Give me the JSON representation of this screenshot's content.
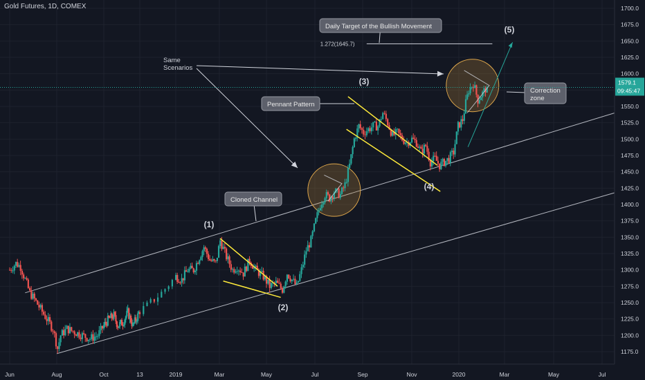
{
  "header": {
    "symbol_title": "Gold Futures, 1D, COMEX"
  },
  "colors": {
    "background": "#131722",
    "grid": "#1e222d",
    "text": "#d1d4dc",
    "up_candle": "#26a69a",
    "down_candle": "#ef5350",
    "channel": "#d1d4dc",
    "pattern_lines": "#ffeb3b",
    "circle_fill": "#b7863a",
    "circle_stroke": "#e0a84c",
    "projection": "#26a69a",
    "price_label": "#26a69a",
    "callout_bg": "#5d606b"
  },
  "chart_data": {
    "type": "candlestick",
    "title": "Gold Futures, 1D, COMEX",
    "y_axis": {
      "range": [
        1160,
        1712
      ],
      "ticks": [
        1175,
        1200,
        1225,
        1250,
        1275,
        1300,
        1325,
        1350,
        1375,
        1400,
        1425,
        1450,
        1475,
        1500,
        1525,
        1550,
        1575,
        1600,
        1625,
        1650,
        1675,
        1700
      ],
      "tick_labels": [
        "1175.0",
        "1200.0",
        "1225.0",
        "1250.0",
        "1275.0",
        "1300.0",
        "1325.0",
        "1350.0",
        "1375.0",
        "1400.0",
        "1425.0",
        "1450.0",
        "1475.0",
        "1500.0",
        "1525.0",
        "1550.0",
        "1575.0",
        "1600.0",
        "1625.0",
        "1650.0",
        "1675.0",
        "1700.0"
      ]
    },
    "x_axis": {
      "tick_labels": [
        "Jun",
        "Aug",
        "Oct",
        "13",
        "2019",
        "Mar",
        "May",
        "Jul",
        "Sep",
        "Nov",
        "2020",
        "Mar",
        "May",
        "Jul"
      ],
      "tick_days": [
        0,
        61,
        122,
        194,
        214,
        273,
        334,
        395,
        457,
        518,
        579,
        639,
        700,
        761
      ]
    },
    "price_path": [
      [
        0,
        1300
      ],
      [
        8,
        1310
      ],
      [
        14,
        1305
      ],
      [
        20,
        1285
      ],
      [
        26,
        1265
      ],
      [
        32,
        1255
      ],
      [
        40,
        1240
      ],
      [
        48,
        1225
      ],
      [
        56,
        1210
      ],
      [
        62,
        1180
      ],
      [
        66,
        1200
      ],
      [
        74,
        1210
      ],
      [
        84,
        1205
      ],
      [
        94,
        1200
      ],
      [
        104,
        1195
      ],
      [
        114,
        1200
      ],
      [
        122,
        1215
      ],
      [
        132,
        1225
      ],
      [
        142,
        1230
      ],
      [
        150,
        1215
      ],
      [
        160,
        1220
      ],
      [
        170,
        1235
      ],
      [
        180,
        1215
      ],
      [
        190,
        1230
      ],
      [
        198,
        1245
      ],
      [
        206,
        1265
      ],
      [
        214,
        1290
      ],
      [
        222,
        1285
      ],
      [
        230,
        1300
      ],
      [
        238,
        1300
      ],
      [
        246,
        1320
      ],
      [
        252,
        1335
      ],
      [
        260,
        1315
      ],
      [
        268,
        1310
      ],
      [
        274,
        1345
      ],
      [
        282,
        1320
      ],
      [
        290,
        1300
      ],
      [
        296,
        1305
      ],
      [
        304,
        1295
      ],
      [
        312,
        1315
      ],
      [
        320,
        1300
      ],
      [
        330,
        1290
      ],
      [
        338,
        1275
      ],
      [
        346,
        1280
      ],
      [
        354,
        1270
      ],
      [
        360,
        1295
      ],
      [
        366,
        1285
      ],
      [
        372,
        1275
      ],
      [
        378,
        1300
      ],
      [
        384,
        1330
      ],
      [
        390,
        1345
      ],
      [
        396,
        1375
      ],
      [
        402,
        1400
      ],
      [
        408,
        1415
      ],
      [
        414,
        1410
      ],
      [
        420,
        1420
      ],
      [
        428,
        1415
      ],
      [
        434,
        1430
      ],
      [
        440,
        1460
      ],
      [
        446,
        1500
      ],
      [
        452,
        1520
      ],
      [
        458,
        1510
      ],
      [
        464,
        1515
      ],
      [
        470,
        1520
      ],
      [
        476,
        1520
      ],
      [
        482,
        1540
      ],
      [
        488,
        1525
      ],
      [
        494,
        1505
      ],
      [
        500,
        1510
      ],
      [
        506,
        1500
      ],
      [
        512,
        1495
      ],
      [
        518,
        1500
      ],
      [
        524,
        1495
      ],
      [
        530,
        1480
      ],
      [
        536,
        1490
      ],
      [
        542,
        1465
      ],
      [
        548,
        1470
      ],
      [
        554,
        1460
      ],
      [
        560,
        1465
      ],
      [
        566,
        1470
      ],
      [
        572,
        1480
      ],
      [
        578,
        1520
      ],
      [
        584,
        1530
      ],
      [
        588,
        1555
      ],
      [
        592,
        1575
      ],
      [
        598,
        1585
      ],
      [
        604,
        1560
      ],
      [
        610,
        1570
      ],
      [
        616,
        1580
      ]
    ],
    "last_price": "1579.1",
    "countdown": "09:45:47",
    "annotations": {
      "daily_target_callout": "Daily Target of the Bullish Movement",
      "fib_level_label": "1.272(1645.7)",
      "same_scenarios": "Same\nScenarios",
      "pennant_callout": "Pennant Pattern",
      "cloned_channel_callout": "Cloned Channel",
      "correction_callout": "Correction\nzone",
      "wave_labels": [
        "(1)",
        "(2)",
        "(3)",
        "(4)",
        "(5)"
      ]
    }
  }
}
